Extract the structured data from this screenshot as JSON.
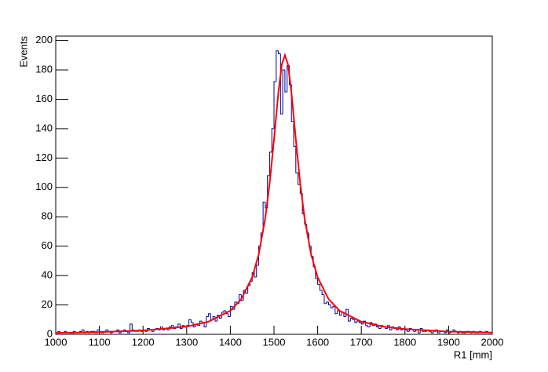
{
  "chart_data": {
    "type": "histogram",
    "x_label": "R1 [mm]",
    "y_label": "Events",
    "bins": [
      1000,
      1005,
      1010,
      1015,
      1020,
      1025,
      1030,
      1035,
      1040,
      1045,
      1050,
      1055,
      1060,
      1065,
      1070,
      1075,
      1080,
      1085,
      1090,
      1095,
      1100,
      1105,
      1110,
      1115,
      1120,
      1125,
      1130,
      1135,
      1140,
      1145,
      1150,
      1155,
      1160,
      1165,
      1170,
      1175,
      1180,
      1185,
      1190,
      1195,
      1200,
      1205,
      1210,
      1215,
      1220,
      1225,
      1230,
      1235,
      1240,
      1245,
      1250,
      1255,
      1260,
      1265,
      1270,
      1275,
      1280,
      1285,
      1290,
      1295,
      1300,
      1305,
      1310,
      1315,
      1320,
      1325,
      1330,
      1335,
      1340,
      1345,
      1350,
      1355,
      1360,
      1365,
      1370,
      1375,
      1380,
      1385,
      1390,
      1395,
      1400,
      1405,
      1410,
      1415,
      1420,
      1425,
      1430,
      1435,
      1440,
      1445,
      1450,
      1455,
      1460,
      1465,
      1470,
      1475,
      1480,
      1485,
      1490,
      1495,
      1500,
      1505,
      1510,
      1515,
      1520,
      1525,
      1530,
      1535,
      1540,
      1545,
      1550,
      1555,
      1560,
      1565,
      1570,
      1575,
      1580,
      1585,
      1590,
      1595,
      1600,
      1605,
      1610,
      1615,
      1620,
      1625,
      1630,
      1635,
      1640,
      1645,
      1650,
      1655,
      1660,
      1665,
      1670,
      1675,
      1680,
      1685,
      1690,
      1695,
      1700,
      1705,
      1710,
      1715,
      1720,
      1725,
      1730,
      1735,
      1740,
      1745,
      1750,
      1755,
      1760,
      1765,
      1770,
      1775,
      1780,
      1785,
      1790,
      1795,
      1800,
      1805,
      1810,
      1815,
      1820,
      1825,
      1830,
      1835,
      1840,
      1845,
      1850,
      1855,
      1860,
      1865,
      1870,
      1875,
      1880,
      1885,
      1890,
      1895,
      1900,
      1905,
      1910,
      1915,
      1920,
      1925,
      1930,
      1935,
      1940,
      1945,
      1950,
      1955,
      1960,
      1965,
      1970,
      1975,
      1980,
      1985,
      1990,
      1995,
      2000
    ],
    "values": [
      1,
      2,
      1,
      1,
      2,
      1,
      1,
      0,
      2,
      1,
      1,
      2,
      3,
      1,
      2,
      1,
      2,
      2,
      1,
      3,
      2,
      1,
      2,
      3,
      2,
      1,
      2,
      2,
      3,
      1,
      2,
      3,
      2,
      1,
      7,
      3,
      2,
      2,
      3,
      2,
      3,
      2,
      4,
      3,
      2,
      3,
      4,
      3,
      5,
      3,
      4,
      3,
      5,
      6,
      4,
      5,
      7,
      4,
      6,
      5,
      6,
      10,
      8,
      5,
      7,
      6,
      9,
      8,
      5,
      12,
      14,
      10,
      12,
      9,
      13,
      11,
      15,
      16,
      14,
      12,
      19,
      17,
      22,
      21,
      27,
      23,
      30,
      28,
      33,
      36,
      42,
      39,
      47,
      60,
      69,
      90,
      86,
      108,
      124,
      140,
      172,
      193,
      191,
      150,
      180,
      165,
      183,
      170,
      145,
      128,
      110,
      102,
      96,
      82,
      75,
      69,
      60,
      53,
      46,
      38,
      34,
      30,
      27,
      21,
      22,
      20,
      18,
      19,
      14,
      16,
      13,
      15,
      12,
      17,
      9,
      11,
      10,
      8,
      9,
      8,
      7,
      9,
      6,
      5,
      8,
      6,
      7,
      5,
      4,
      6,
      5,
      4,
      6,
      3,
      5,
      4,
      3,
      5,
      3,
      4,
      3,
      2,
      4,
      3,
      2,
      3,
      1,
      4,
      2,
      2,
      3,
      2,
      1,
      2,
      3,
      1,
      2,
      2,
      1,
      3,
      1,
      2,
      3,
      2,
      1,
      2,
      1,
      1,
      2,
      2,
      1,
      2,
      1,
      1,
      2,
      1,
      1,
      2,
      1,
      1
    ],
    "color": "#000099",
    "fit": {
      "color": "#ff0000",
      "x": [
        1000,
        1100,
        1200,
        1300,
        1350,
        1400,
        1425,
        1450,
        1465,
        1480,
        1490,
        1500,
        1510,
        1518,
        1525,
        1532,
        1540,
        1550,
        1560,
        1570,
        1585,
        1600,
        1625,
        1650,
        1700,
        1750,
        1800,
        1900,
        2000
      ],
      "values": [
        1.0,
        1.5,
        2.6,
        5.3,
        8.6,
        16.1,
        24.0,
        38.8,
        54.4,
        79.1,
        102.8,
        132.6,
        164.4,
        183.8,
        190,
        183.8,
        164.4,
        132.6,
        102.8,
        79.1,
        54.4,
        38.8,
        24.0,
        16.1,
        8.6,
        5.3,
        3.6,
        1.9,
        1.2
      ]
    },
    "xlim": [
      1000,
      2000
    ],
    "xticks": [
      1000,
      1100,
      1200,
      1300,
      1400,
      1500,
      1600,
      1700,
      1800,
      1900,
      2000
    ],
    "ylim": [
      0,
      203
    ],
    "yticks": [
      0,
      20,
      40,
      60,
      80,
      100,
      120,
      140,
      160,
      180,
      200
    ]
  }
}
